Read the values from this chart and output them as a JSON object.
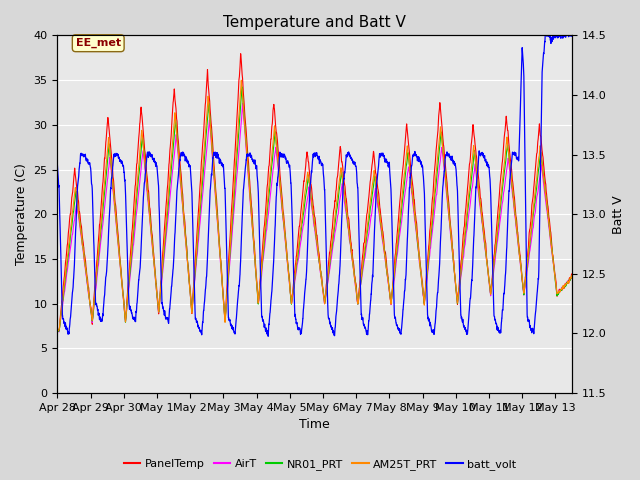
{
  "title": "Temperature and Batt V",
  "xlabel": "Time",
  "ylabel_left": "Temperature (C)",
  "ylabel_right": "Batt V",
  "annotation": "EE_met",
  "ylim_left": [
    0,
    40
  ],
  "ylim_right": [
    11.5,
    14.5
  ],
  "xtick_labels": [
    "Apr 28",
    "Apr 29",
    "Apr 30",
    "May 1",
    "May 2",
    "May 3",
    "May 4",
    "May 5",
    "May 6",
    "May 7",
    "May 8",
    "May 9",
    "May 10",
    "May 11",
    "May 12",
    "May 13"
  ],
  "yticks_left": [
    0,
    5,
    10,
    15,
    20,
    25,
    30,
    35,
    40
  ],
  "yticks_right": [
    11.5,
    12.0,
    12.5,
    13.0,
    13.5,
    14.0,
    14.5
  ],
  "series_colors": {
    "PanelTemp": "#ff0000",
    "AirT": "#ff00ff",
    "NR01_PRT": "#00cc00",
    "AM25T_PRT": "#ff8800",
    "batt_volt": "#0000ff"
  },
  "legend_labels": [
    "PanelTemp",
    "AirT",
    "NR01_PRT",
    "AM25T_PRT",
    "batt_volt"
  ],
  "day_peaks": [
    25,
    31,
    32,
    34,
    36,
    38,
    32.5,
    27,
    27.5,
    27,
    30,
    32.5,
    30,
    31,
    30
  ],
  "day_troughs": [
    7,
    8,
    8,
    9,
    9,
    8,
    10,
    10,
    10,
    10,
    10,
    10,
    10,
    11,
    11
  ],
  "background_color": "#d8d8d8",
  "plot_bg_color": "#e8e8e8",
  "grid_color": "#ffffff",
  "title_fontsize": 11,
  "axis_fontsize": 9,
  "tick_fontsize": 8
}
